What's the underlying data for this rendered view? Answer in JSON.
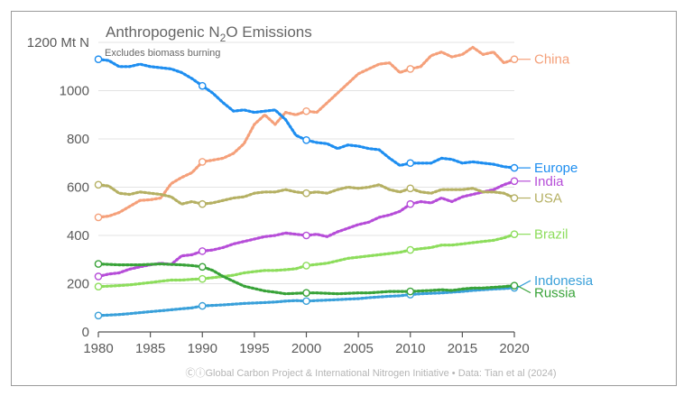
{
  "chart_data": {
    "type": "line",
    "title_prefix": "Anthropogenic N",
    "title_sub": "2",
    "title_suffix": "O Emissions",
    "subtitle": "Excludes biomass burning",
    "y_unit": "Mt N",
    "footer_icons": "Ⓒⓘ",
    "footer": "Global Carbon Project & International Nitrogen Initiative  •  Data: Tian et al (2024)",
    "xlim": [
      1980,
      2020
    ],
    "ylim": [
      0,
      1200
    ],
    "x_ticks": [
      1980,
      1985,
      1990,
      1995,
      2000,
      2005,
      2010,
      2015,
      2020
    ],
    "y_ticks": [
      0,
      200,
      400,
      600,
      800,
      1000,
      1200
    ],
    "grid": "horizontal",
    "marker_years": [
      1980,
      1990,
      2000,
      2010,
      2020
    ],
    "x": [
      1980,
      1981,
      1982,
      1983,
      1984,
      1985,
      1986,
      1987,
      1988,
      1989,
      1990,
      1991,
      1992,
      1993,
      1994,
      1995,
      1996,
      1997,
      1998,
      1999,
      2000,
      2001,
      2002,
      2003,
      2004,
      2005,
      2006,
      2007,
      2008,
      2009,
      2010,
      2011,
      2012,
      2013,
      2014,
      2015,
      2016,
      2017,
      2018,
      2019,
      2020
    ],
    "series": [
      {
        "name": "China",
        "color": "#f4a07a",
        "label_offset": 0,
        "values": [
          475,
          480,
          495,
          520,
          545,
          548,
          555,
          615,
          640,
          660,
          705,
          712,
          720,
          740,
          780,
          860,
          900,
          860,
          910,
          900,
          915,
          910,
          950,
          990,
          1030,
          1070,
          1090,
          1110,
          1115,
          1075,
          1090,
          1100,
          1145,
          1160,
          1140,
          1150,
          1180,
          1150,
          1160,
          1115,
          1130
        ]
      },
      {
        "name": "Europe",
        "color": "#1e8ef0",
        "label_offset": 0,
        "values": [
          1130,
          1125,
          1100,
          1100,
          1110,
          1100,
          1095,
          1090,
          1075,
          1050,
          1020,
          990,
          950,
          915,
          920,
          910,
          915,
          920,
          880,
          815,
          795,
          785,
          780,
          760,
          775,
          770,
          760,
          755,
          720,
          690,
          700,
          700,
          700,
          720,
          715,
          700,
          705,
          700,
          695,
          685,
          680
        ]
      },
      {
        "name": "India",
        "color": "#b64ed8",
        "label_offset": 0,
        "values": [
          230,
          240,
          245,
          260,
          270,
          278,
          285,
          280,
          315,
          320,
          335,
          340,
          350,
          365,
          375,
          385,
          395,
          400,
          410,
          405,
          400,
          405,
          395,
          415,
          430,
          445,
          455,
          475,
          485,
          500,
          530,
          540,
          535,
          555,
          540,
          560,
          570,
          580,
          590,
          610,
          625
        ]
      },
      {
        "name": "USA",
        "color": "#b5b063",
        "label_offset": 0,
        "values": [
          610,
          605,
          575,
          570,
          580,
          575,
          570,
          560,
          530,
          540,
          530,
          535,
          545,
          555,
          560,
          575,
          580,
          580,
          590,
          580,
          575,
          580,
          575,
          590,
          600,
          595,
          600,
          610,
          590,
          580,
          595,
          580,
          575,
          590,
          590,
          590,
          595,
          580,
          580,
          575,
          555
        ]
      },
      {
        "name": "Brazil",
        "color": "#8ddd5c",
        "label_offset": 0,
        "values": [
          188,
          190,
          192,
          195,
          200,
          205,
          210,
          215,
          215,
          218,
          220,
          225,
          230,
          235,
          245,
          250,
          255,
          255,
          258,
          262,
          275,
          280,
          285,
          295,
          305,
          310,
          315,
          320,
          325,
          330,
          340,
          345,
          350,
          360,
          360,
          365,
          370,
          375,
          380,
          390,
          405
        ]
      },
      {
        "name": "Indonesia",
        "color": "#3aa0d9",
        "label_offset": -8,
        "values": [
          68,
          70,
          72,
          76,
          80,
          84,
          88,
          92,
          96,
          100,
          108,
          110,
          112,
          115,
          118,
          120,
          122,
          124,
          128,
          130,
          128,
          130,
          132,
          134,
          136,
          138,
          142,
          145,
          148,
          150,
          155,
          158,
          160,
          162,
          165,
          168,
          172,
          175,
          178,
          180,
          183
        ]
      },
      {
        "name": "Russia",
        "color": "#3aa33a",
        "label_offset": 8,
        "values": [
          282,
          280,
          278,
          278,
          278,
          280,
          282,
          280,
          278,
          275,
          270,
          255,
          230,
          210,
          190,
          180,
          170,
          165,
          158,
          160,
          162,
          162,
          160,
          158,
          160,
          162,
          162,
          165,
          168,
          168,
          168,
          170,
          172,
          175,
          172,
          178,
          182,
          182,
          185,
          188,
          192
        ]
      }
    ]
  }
}
